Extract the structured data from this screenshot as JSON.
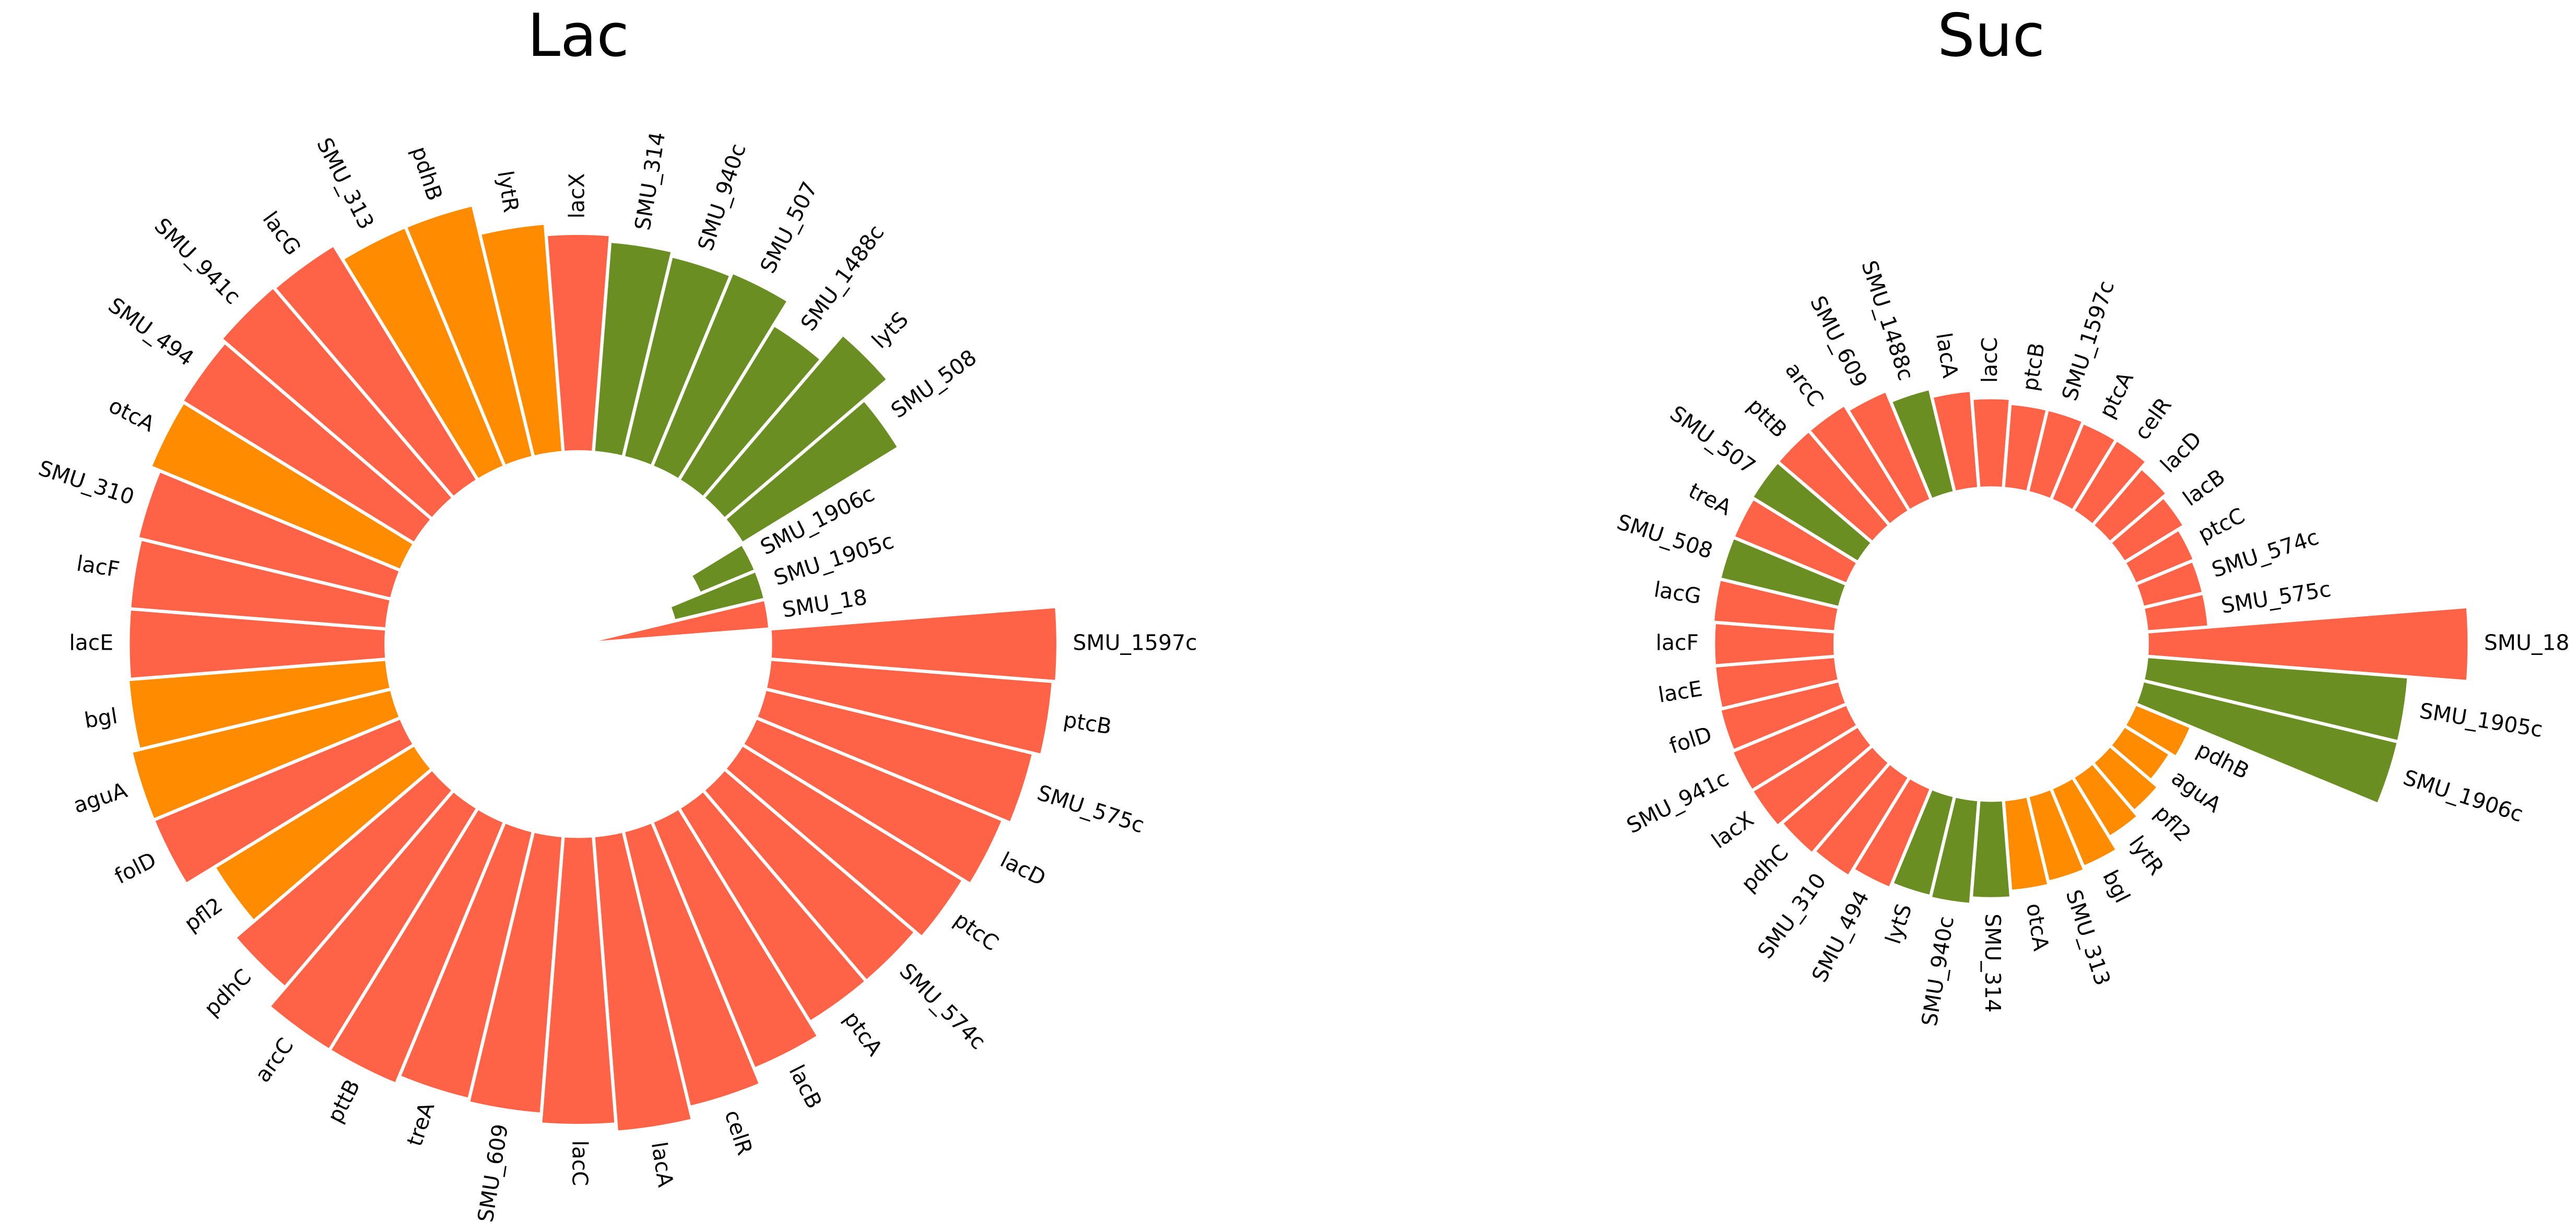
{
  "chart_data": [
    {
      "type": "bar",
      "polar": true,
      "title": "Lac",
      "categories": [
        "SMU_1597c",
        "ptcB",
        "SMU_575c",
        "lacD",
        "ptcC",
        "SMU_574c",
        "ptcA",
        "lacB",
        "celR",
        "lacA",
        "lacC",
        "SMU_609",
        "treA",
        "pttB",
        "arcC",
        "pdhC",
        "pfl2",
        "folD",
        "aguA",
        "bgl",
        "lacE",
        "lacF",
        "SMU_310",
        "otcA",
        "SMU_494",
        "SMU_941c",
        "lacG",
        "SMU_313",
        "pdhB",
        "lytR",
        "lacX",
        "SMU_314",
        "SMU_940c",
        "SMU_507",
        "SMU_1488c",
        "lytS",
        "SMU_508",
        "SMU_1906c",
        "SMU_1905c",
        "SMU_18"
      ],
      "values": [
        175,
        173,
        168,
        163,
        158,
        153,
        153,
        163,
        173,
        181,
        176,
        170,
        168,
        173,
        173,
        158,
        143,
        163,
        163,
        158,
        157,
        157,
        159,
        165,
        166,
        169,
        168,
        158,
        158,
        140,
        133,
        129,
        126,
        128,
        111,
        131,
        112,
        -37,
        -57,
        -117
      ],
      "colors": [
        "#ff6347",
        "#ff6347",
        "#ff6347",
        "#ff6347",
        "#ff6347",
        "#ff6347",
        "#ff6347",
        "#ff6347",
        "#ff6347",
        "#ff6347",
        "#ff6347",
        "#ff6347",
        "#ff6347",
        "#ff6347",
        "#ff6347",
        "#ff6347",
        "#ff8c00",
        "#ff6347",
        "#ff8c00",
        "#ff8c00",
        "#ff6347",
        "#ff6347",
        "#ff6347",
        "#ff8c00",
        "#ff6347",
        "#ff6347",
        "#ff6347",
        "#ff8c00",
        "#ff8c00",
        "#ff8c00",
        "#ff6347",
        "#6b8e23",
        "#6b8e23",
        "#6b8e23",
        "#6b8e23",
        "#6b8e23",
        "#6b8e23",
        "#6b8e23",
        "#6b8e23",
        "#ff6347"
      ],
      "ylim": [
        -117,
        183
      ]
    },
    {
      "type": "bar",
      "polar": true,
      "title": "Suc",
      "categories": [
        "SMU_18",
        "SMU_1905c",
        "SMU_1906c",
        "pdhB",
        "aguA",
        "pfl2",
        "lytR",
        "bgl",
        "SMU_313",
        "otcA",
        "SMU_314",
        "SMU_940c",
        "lytS",
        "SMU_494",
        "SMU_310",
        "pdhC",
        "lacX",
        "SMU_941c",
        "folD",
        "lacE",
        "lacF",
        "lacG",
        "SMU_508",
        "treA",
        "SMU_507",
        "pttB",
        "arcC",
        "SMU_609",
        "SMU_1488c",
        "lacA",
        "lacC",
        "ptcB",
        "SMU_1597c",
        "ptcA",
        "celR",
        "lacD",
        "lacB",
        "ptcC",
        "SMU_574c",
        "SMU_575c"
      ],
      "values": [
        196,
        160,
        160,
        37,
        33,
        39,
        43,
        52,
        54,
        56,
        60,
        64,
        63,
        66,
        71,
        73,
        76,
        76,
        75,
        74,
        74,
        75,
        75,
        75,
        76,
        76,
        76,
        72,
        65,
        60,
        55,
        52,
        52,
        51,
        51,
        46,
        43,
        39,
        38,
        38
      ],
      "colors": [
        "#ff6347",
        "#6b8e23",
        "#6b8e23",
        "#ff8c00",
        "#ff8c00",
        "#ff8c00",
        "#ff8c00",
        "#ff8c00",
        "#ff8c00",
        "#ff8c00",
        "#6b8e23",
        "#6b8e23",
        "#6b8e23",
        "#ff6347",
        "#ff6347",
        "#ff6347",
        "#ff6347",
        "#ff6347",
        "#ff6347",
        "#ff6347",
        "#ff6347",
        "#ff6347",
        "#6b8e23",
        "#ff6347",
        "#6b8e23",
        "#ff6347",
        "#ff6347",
        "#ff6347",
        "#6b8e23",
        "#ff6347",
        "#ff6347",
        "#ff6347",
        "#ff6347",
        "#ff6347",
        "#ff6347",
        "#ff6347",
        "#ff6347",
        "#ff6347",
        "#ff6347",
        "#ff6347"
      ],
      "ylim": [
        -95,
        205
      ]
    }
  ]
}
